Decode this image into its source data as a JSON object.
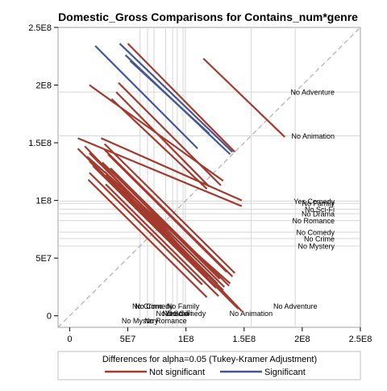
{
  "chart_data": {
    "type": "diffogram",
    "title": "Domestic_Gross Comparisons for Contains_num*genre",
    "footnote": "Differences for alpha=0.05 (Tukey-Kramer Adjustment)",
    "xlim": [
      -10000000.0,
      250000000.0
    ],
    "ylim": [
      -10000000.0,
      250000000.0
    ],
    "x_tick_labels": [
      "0",
      "5E7",
      "1E8",
      "1.5E8",
      "2E8",
      "2.5E8"
    ],
    "y_tick_labels": [
      "0",
      "5E7",
      "1E8",
      "1.5E8",
      "2E8",
      "2.5E8"
    ],
    "legend": [
      {
        "label": "Not significant",
        "color": "#a23a2e"
      },
      {
        "label": "Significant",
        "color": "#445694"
      }
    ],
    "means": [
      {
        "label": "No Adventure",
        "value": 194000000.0
      },
      {
        "label": "No Animation",
        "value": 156000000.0
      },
      {
        "label": "Yes Comedy",
        "value": 99500000.0
      },
      {
        "label": "No Family",
        "value": 97500000.0
      },
      {
        "label": "No Sci-Fi",
        "value": 92500000.0
      },
      {
        "label": "No Drama",
        "value": 88500000.0
      },
      {
        "label": "No Romance",
        "value": 82500000.0
      },
      {
        "label": "No Comedy",
        "value": 72500000.0
      },
      {
        "label": "No Crime",
        "value": 67000000.0
      },
      {
        "label": "No Mystery",
        "value": 60500000.0
      }
    ],
    "segments": [
      {
        "x1": 43000000.0,
        "y1": 236000000.0,
        "x2": 140000000.0,
        "y2": 142000000.0,
        "significant": true
      },
      {
        "x1": 48000000.0,
        "y1": 226000000.0,
        "x2": 138000000.0,
        "y2": 140000000.0,
        "significant": true
      },
      {
        "x1": 22000000.0,
        "y1": 234000000.0,
        "x2": 110000000.0,
        "y2": 145000000.0,
        "significant": true
      },
      {
        "x1": 50000000.0,
        "y1": 236000000.0,
        "x2": 142000000.0,
        "y2": 142000000.0,
        "significant": false
      },
      {
        "x1": 52000000.0,
        "y1": 221000000.0,
        "x2": 120000000.0,
        "y2": 158000000.0,
        "significant": true
      },
      {
        "x1": 115000000.0,
        "y1": 223000000.0,
        "x2": 185000000.0,
        "y2": 155000000.0,
        "significant": false
      },
      {
        "x1": 17000000.0,
        "y1": 200000000.0,
        "x2": 132000000.0,
        "y2": 117000000.0,
        "significant": false
      },
      {
        "x1": 42000000.0,
        "y1": 202000000.0,
        "x2": 130000000.0,
        "y2": 113000000.0,
        "significant": false
      },
      {
        "x1": 40000000.0,
        "y1": 194000000.0,
        "x2": 120000000.0,
        "y2": 112000000.0,
        "significant": false
      },
      {
        "x1": 36000000.0,
        "y1": 188000000.0,
        "x2": 118000000.0,
        "y2": 110000000.0,
        "significant": false
      },
      {
        "x1": 7000000.0,
        "y1": 154000000.0,
        "x2": 148000000.0,
        "y2": 95000000.0,
        "significant": false
      },
      {
        "x1": 27000000.0,
        "y1": 154000000.0,
        "x2": 148000000.0,
        "y2": 100000000.0,
        "significant": false
      },
      {
        "x1": 7000000.0,
        "y1": 145000000.0,
        "x2": 145000000.0,
        "y2": 6000000.0,
        "significant": false
      },
      {
        "x1": 13000000.0,
        "y1": 147000000.0,
        "x2": 148000000.0,
        "y2": 4000000.0,
        "significant": false
      },
      {
        "x1": 30000000.0,
        "y1": 149000000.0,
        "x2": 142000000.0,
        "y2": 37000000.0,
        "significant": false
      },
      {
        "x1": 17000000.0,
        "y1": 141000000.0,
        "x2": 128000000.0,
        "y2": 30000000.0,
        "significant": false
      },
      {
        "x1": 30000000.0,
        "y1": 144000000.0,
        "x2": 140000000.0,
        "y2": 34000000.0,
        "significant": false
      },
      {
        "x1": 15000000.0,
        "y1": 138000000.0,
        "x2": 138000000.0,
        "y2": 28000000.0,
        "significant": false
      },
      {
        "x1": 33000000.0,
        "y1": 140000000.0,
        "x2": 135000000.0,
        "y2": 38000000.0,
        "significant": false
      },
      {
        "x1": 17000000.0,
        "y1": 134000000.0,
        "x2": 132000000.0,
        "y2": 22000000.0,
        "significant": false
      },
      {
        "x1": 28000000.0,
        "y1": 133000000.0,
        "x2": 129000000.0,
        "y2": 32000000.0,
        "significant": false
      },
      {
        "x1": 20000000.0,
        "y1": 130000000.0,
        "x2": 126000000.0,
        "y2": 24000000.0,
        "significant": false
      },
      {
        "x1": 30000000.0,
        "y1": 131000000.0,
        "x2": 124000000.0,
        "y2": 37000000.0,
        "significant": false
      },
      {
        "x1": 30000000.0,
        "y1": 128000000.0,
        "x2": 133000000.0,
        "y2": 25000000.0,
        "significant": false
      },
      {
        "x1": 35000000.0,
        "y1": 128000000.0,
        "x2": 137000000.0,
        "y2": 26000000.0,
        "significant": false
      },
      {
        "x1": 17000000.0,
        "y1": 124000000.0,
        "x2": 114000000.0,
        "y2": 27000000.0,
        "significant": false
      },
      {
        "x1": 30000000.0,
        "y1": 125000000.0,
        "x2": 127000000.0,
        "y2": 28000000.0,
        "significant": false
      },
      {
        "x1": 31000000.0,
        "y1": 122000000.0,
        "x2": 119000000.0,
        "y2": 34000000.0,
        "significant": false
      },
      {
        "x1": 31000000.0,
        "y1": 114000000.0,
        "x2": 128000000.0,
        "y2": 17000000.0,
        "significant": false
      },
      {
        "x1": 16000000.0,
        "y1": 118000000.0,
        "x2": 118000000.0,
        "y2": 16000000.0,
        "significant": false
      },
      {
        "x1": 46000000.0,
        "y1": 108000000.0,
        "x2": 132000000.0,
        "y2": 22000000.0,
        "significant": false
      }
    ]
  }
}
